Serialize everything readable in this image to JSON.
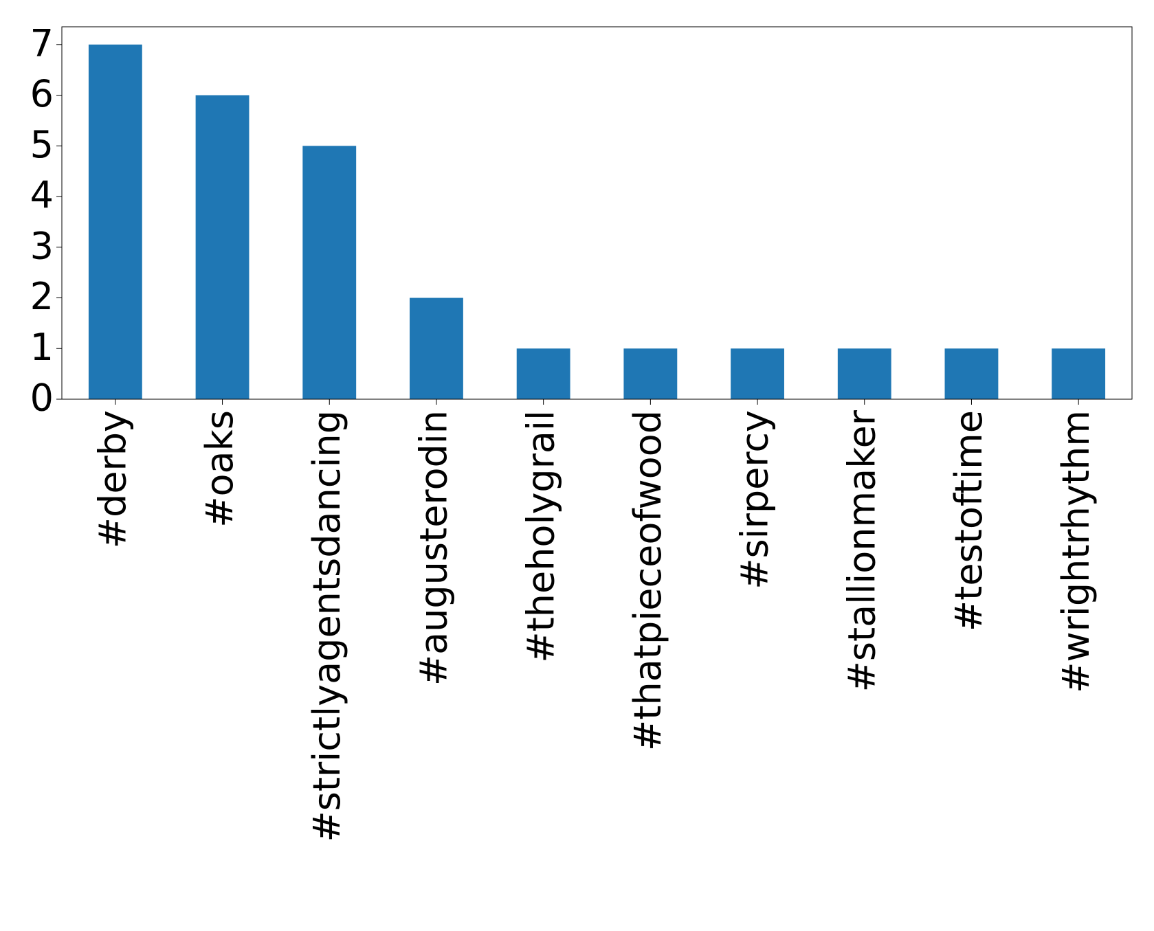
{
  "chart_data": {
    "type": "bar",
    "categories": [
      "#derby",
      "#oaks",
      "#strictlyagentsdancing",
      "#augusterodin",
      "#theholygrail",
      "#thatpieceofwood",
      "#sirpercy",
      "#stallionmaker",
      "#testoftime",
      "#wrightrhythm"
    ],
    "values": [
      7,
      6,
      5,
      2,
      1,
      1,
      1,
      1,
      1,
      1
    ],
    "color": "#1f77b4",
    "ylim": [
      0,
      7.35
    ],
    "yticks": [
      0,
      1,
      2,
      3,
      4,
      5,
      6,
      7
    ],
    "grid": false
  }
}
